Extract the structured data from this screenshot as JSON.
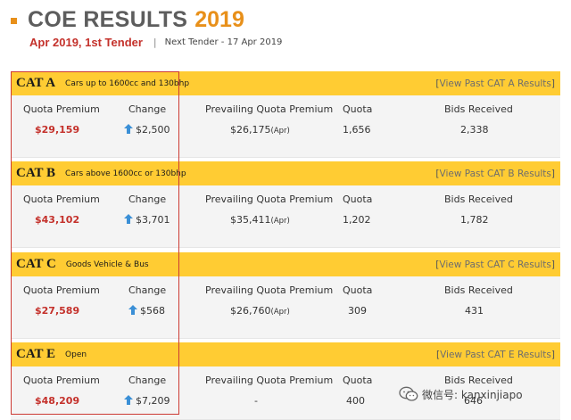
{
  "header": {
    "title": "COE RESULTS",
    "year": "2019",
    "tender": "Apr 2019, 1st Tender",
    "separator": "|",
    "next_tender": "Next Tender - 17 Apr 2019"
  },
  "columns": {
    "quota_premium": "Quota Premium",
    "change": "Change",
    "prevailing": "Prevailing Quota Premium",
    "quota": "Quota",
    "bids": "Bids Received"
  },
  "categories": [
    {
      "name": "CAT A",
      "desc": "Cars up to 1600cc and 130bhp",
      "link_open": "[",
      "link": "View Past CAT A Results",
      "link_close": "]",
      "premium": "$29,159",
      "change": "$2,500",
      "pqp": "$26,175",
      "pqp_suffix": "(Apr)",
      "quota": "1,656",
      "bids": "2,338"
    },
    {
      "name": "CAT B",
      "desc": "Cars above 1600cc or 130bhp",
      "link_open": "[",
      "link": "View Past CAT B Results",
      "link_close": "]",
      "premium": "$43,102",
      "change": "$3,701",
      "pqp": "$35,411",
      "pqp_suffix": "(Apr)",
      "quota": "1,202",
      "bids": "1,782"
    },
    {
      "name": "CAT C",
      "desc": "Goods Vehicle & Bus",
      "link_open": "[",
      "link": "View Past CAT C Results",
      "link_close": "]",
      "premium": "$27,589",
      "change": "$568",
      "pqp": "$26,760",
      "pqp_suffix": "(Apr)",
      "quota": "309",
      "bids": "431"
    },
    {
      "name": "CAT E",
      "desc": "Open",
      "link_open": "[",
      "link": "View Past CAT E Results",
      "link_close": "]",
      "premium": "$48,209",
      "change": "$7,209",
      "pqp": "-",
      "pqp_suffix": "",
      "quota": "400",
      "bids": "646"
    }
  ],
  "watermark": {
    "text": "微信号: kanxinjiapo",
    "icon": "wechat-icon"
  },
  "colors": {
    "accent": "#e8901a",
    "header_band": "#ffcc33",
    "premium": "#c4312b",
    "arrow": "#3a8fd6",
    "highlight_box": "#cc3a33"
  }
}
